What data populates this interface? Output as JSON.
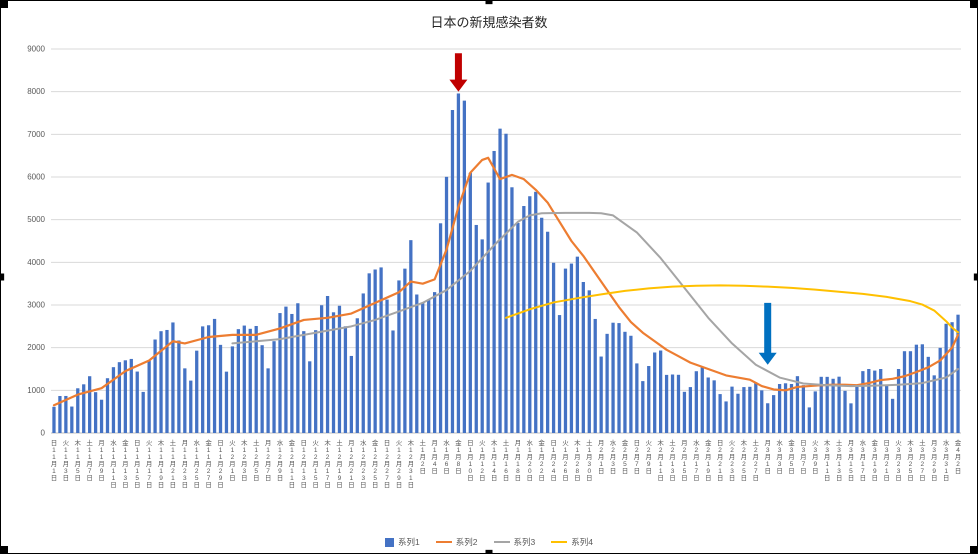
{
  "chart_data": {
    "type": "combo-bar-line",
    "title": "日本の新規感染者数",
    "ylim": [
      0,
      9000
    ],
    "ytick_interval": 1000,
    "ytick_labels": [
      "0",
      "1000",
      "2000",
      "3000",
      "4000",
      "5000",
      "6000",
      "7000",
      "8000",
      "9000"
    ],
    "grid": "horizontal",
    "legend_position": "bottom",
    "num_points": 153,
    "x_label_interval": 2,
    "x_labels": [
      "日11月1日",
      "火11月3日",
      "木11月5日",
      "土11月7日",
      "月11月9日",
      "水11月11日",
      "金11月13日",
      "日11月15日",
      "火11月17日",
      "木11月19日",
      "土11月21日",
      "月11月23日",
      "水11月25日",
      "金11月27日",
      "日11月29日",
      "火12月1日",
      "木12月3日",
      "土12月5日",
      "月12月7日",
      "水12月9日",
      "金12月11日",
      "日12月13日",
      "火12月15日",
      "木12月17日",
      "土12月19日",
      "月12月21日",
      "水12月23日",
      "金12月25日",
      "日12月27日",
      "火12月29日",
      "木12月31日",
      "土1月2日",
      "月1月4日",
      "水1月6日",
      "金1月8日",
      "日1月10日",
      "火1月12日",
      "木1月14日",
      "土1月16日",
      "月1月18日",
      "水1月20日",
      "金1月22日",
      "日1月24日",
      "火1月26日",
      "木1月28日",
      "土1月30日",
      "月2月1日",
      "水2月3日",
      "金2月5日",
      "日2月7日",
      "火2月9日",
      "木2月11日",
      "土2月13日",
      "月2月15日",
      "水2月17日",
      "金2月19日",
      "日2月21日",
      "火2月23日",
      "木2月25日",
      "土2月27日",
      "月3月1日",
      "水3月3日",
      "金3月5日",
      "日3月7日",
      "火3月9日",
      "木3月11日",
      "土3月13日",
      "月3月15日",
      "水3月17日",
      "金3月19日",
      "日3月21日",
      "火3月23日",
      "木3月25日",
      "土3月27日",
      "月3月29日",
      "水3月31日",
      "金4月2日"
    ],
    "series": [
      {
        "name": "系列1",
        "type": "bar",
        "color": "#4472C4",
        "values": [
          614,
          867,
          868,
          620,
          1048,
          1141,
          1331,
          957,
          780,
          1284,
          1543,
          1660,
          1704,
          1736,
          1440,
          963,
          1695,
          2191,
          2386,
          2415,
          2591,
          2168,
          1515,
          1228,
          1930,
          2499,
          2525,
          2674,
          2066,
          1438,
          2030,
          2434,
          2518,
          2442,
          2508,
          2058,
          1515,
          2152,
          2811,
          2962,
          2790,
          3041,
          2387,
          1680,
          2410,
          2994,
          3211,
          2829,
          2982,
          2501,
          1806,
          2689,
          3271,
          3742,
          3832,
          3881,
          3127,
          2403,
          3576,
          3852,
          4520,
          3246,
          3044,
          3127,
          3302,
          4915,
          6004,
          7570,
          7958,
          7790,
          6097,
          4876,
          4538,
          5870,
          6610,
          7133,
          7014,
          5759,
          4925,
          5320,
          5549,
          5653,
          5045,
          4717,
          3990,
          2764,
          3853,
          3971,
          4133,
          3539,
          3344,
          2673,
          1792,
          2324,
          2585,
          2576,
          2372,
          2279,
          1631,
          1216,
          1570,
          1887,
          1933,
          1362,
          1371,
          1364,
          965,
          1076,
          1448,
          1536,
          1301,
          1234,
          912,
          740,
          1087,
          920,
          1076,
          1083,
          1185,
          999,
          697,
          888,
          1148,
          1165,
          1148,
          1332,
          1121,
          600,
          975,
          1317,
          1316,
          1271,
          1320,
          988,
          695,
          1133,
          1450,
          1500,
          1463,
          1500,
          1121,
          801,
          1500,
          1917,
          1917,
          2070,
          2079,
          1785,
          1351,
          1996,
          2560,
          2597,
          2773
        ]
      },
      {
        "name": "系列2",
        "type": "line",
        "color": "#ED7D31",
        "width": 2.2,
        "points": [
          [
            0,
            650
          ],
          [
            4,
            900
          ],
          [
            8,
            1050
          ],
          [
            12,
            1450
          ],
          [
            16,
            1700
          ],
          [
            20,
            2150
          ],
          [
            22,
            2100
          ],
          [
            26,
            2250
          ],
          [
            30,
            2300
          ],
          [
            34,
            2300
          ],
          [
            38,
            2450
          ],
          [
            42,
            2650
          ],
          [
            46,
            2700
          ],
          [
            50,
            2800
          ],
          [
            54,
            3050
          ],
          [
            58,
            3300
          ],
          [
            60,
            3550
          ],
          [
            62,
            3500
          ],
          [
            64,
            3600
          ],
          [
            66,
            4300
          ],
          [
            68,
            5300
          ],
          [
            70,
            6100
          ],
          [
            72,
            6400
          ],
          [
            73,
            6450
          ],
          [
            75,
            5950
          ],
          [
            77,
            6050
          ],
          [
            79,
            5950
          ],
          [
            81,
            5700
          ],
          [
            83,
            5400
          ],
          [
            85,
            4950
          ],
          [
            87,
            4500
          ],
          [
            89,
            4150
          ],
          [
            91,
            3750
          ],
          [
            93,
            3350
          ],
          [
            95,
            2950
          ],
          [
            97,
            2600
          ],
          [
            99,
            2350
          ],
          [
            101,
            2150
          ],
          [
            103,
            1950
          ],
          [
            105,
            1800
          ],
          [
            107,
            1650
          ],
          [
            109,
            1550
          ],
          [
            111,
            1450
          ],
          [
            113,
            1350
          ],
          [
            115,
            1300
          ],
          [
            117,
            1250
          ],
          [
            119,
            1100
          ],
          [
            121,
            1020
          ],
          [
            123,
            1000
          ],
          [
            125,
            1080
          ],
          [
            127,
            1100
          ],
          [
            129,
            1120
          ],
          [
            131,
            1130
          ],
          [
            133,
            1130
          ],
          [
            135,
            1120
          ],
          [
            137,
            1170
          ],
          [
            139,
            1240
          ],
          [
            141,
            1270
          ],
          [
            143,
            1330
          ],
          [
            145,
            1430
          ],
          [
            147,
            1540
          ],
          [
            149,
            1700
          ],
          [
            151,
            2000
          ],
          [
            152,
            2300
          ]
        ]
      },
      {
        "name": "系列3",
        "type": "line",
        "color": "#A5A5A5",
        "width": 2,
        "points": [
          [
            30,
            2100
          ],
          [
            34,
            2150
          ],
          [
            38,
            2200
          ],
          [
            42,
            2300
          ],
          [
            46,
            2400
          ],
          [
            50,
            2500
          ],
          [
            54,
            2650
          ],
          [
            58,
            2850
          ],
          [
            62,
            3050
          ],
          [
            66,
            3350
          ],
          [
            70,
            3800
          ],
          [
            74,
            4400
          ],
          [
            78,
            4950
          ],
          [
            80,
            5100
          ],
          [
            82,
            5150
          ],
          [
            86,
            5160
          ],
          [
            90,
            5160
          ],
          [
            92,
            5150
          ],
          [
            94,
            5100
          ],
          [
            98,
            4700
          ],
          [
            102,
            4100
          ],
          [
            106,
            3400
          ],
          [
            110,
            2700
          ],
          [
            114,
            2100
          ],
          [
            118,
            1600
          ],
          [
            122,
            1300
          ],
          [
            126,
            1160
          ],
          [
            130,
            1120
          ],
          [
            134,
            1100
          ],
          [
            138,
            1110
          ],
          [
            142,
            1130
          ],
          [
            146,
            1170
          ],
          [
            150,
            1300
          ],
          [
            152,
            1500
          ]
        ]
      },
      {
        "name": "系列4",
        "type": "line",
        "color": "#FFC000",
        "width": 2,
        "points": [
          [
            76,
            2700
          ],
          [
            80,
            2900
          ],
          [
            84,
            3060
          ],
          [
            88,
            3160
          ],
          [
            92,
            3250
          ],
          [
            96,
            3330
          ],
          [
            100,
            3390
          ],
          [
            104,
            3430
          ],
          [
            108,
            3450
          ],
          [
            112,
            3460
          ],
          [
            116,
            3450
          ],
          [
            120,
            3430
          ],
          [
            124,
            3400
          ],
          [
            128,
            3360
          ],
          [
            132,
            3310
          ],
          [
            136,
            3260
          ],
          [
            140,
            3190
          ],
          [
            144,
            3090
          ],
          [
            146,
            3010
          ],
          [
            148,
            2870
          ],
          [
            150,
            2620
          ],
          [
            151,
            2470
          ],
          [
            152,
            2360
          ]
        ]
      }
    ],
    "annotations": [
      {
        "name": "red-down-arrow",
        "date_label": "1月8日",
        "date_index": 68,
        "from_value": 8900,
        "to_value": 8000,
        "color": "#C00000"
      },
      {
        "name": "blue-down-arrow",
        "date_label": "3月1日",
        "date_index": 120,
        "from_value": 3050,
        "to_value": 1600,
        "color": "#0070C0"
      }
    ],
    "colors": {
      "bar": "#4472C4",
      "line2": "#ED7D31",
      "line3": "#A5A5A5",
      "line4": "#FFC000",
      "gridline": "#D9D9D9",
      "axis_line": "#BFBFBF",
      "axis_text": "#595959"
    }
  }
}
